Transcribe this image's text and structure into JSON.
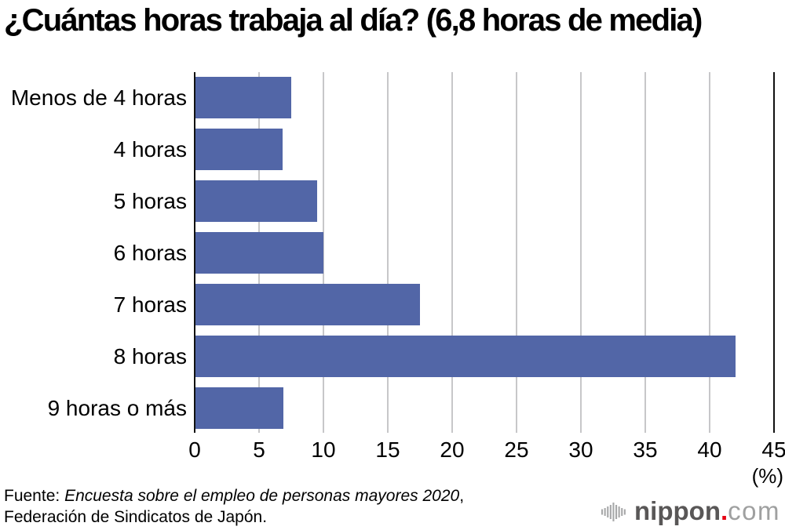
{
  "chart_data": {
    "type": "bar",
    "orientation": "horizontal",
    "title": "¿Cuántas horas trabaja al día? (6,8 horas de media)",
    "categories": [
      "Menos de 4 horas",
      "4 horas",
      "5 horas",
      "6 horas",
      "7 horas",
      "8 horas",
      "9 horas o más"
    ],
    "values": [
      7.5,
      6.8,
      9.5,
      10.0,
      17.5,
      42.0,
      6.9
    ],
    "xlabel": "(%)",
    "xlim": [
      0,
      45
    ],
    "xticks": [
      0,
      5,
      10,
      15,
      20,
      25,
      30,
      35,
      40,
      45
    ],
    "grid": true,
    "legend": false,
    "bar_color": "#5266a7",
    "grid_color": "#c7c7c9",
    "axis_color": "#111111"
  },
  "footer": {
    "source_prefix": "Fuente: ",
    "source_italic": "Encuesta sobre el empleo de personas mayores 2020",
    "source_suffix": ",",
    "source_line2": "Federación de Sindicatos de Japón."
  },
  "logo": {
    "brand": "nippon",
    "dot": ".",
    "tld": "com",
    "brand_color": "#595757",
    "dot_color": "#e60012",
    "tld_color": "#9fa0a0",
    "mark_color": "#a7a8a9"
  }
}
